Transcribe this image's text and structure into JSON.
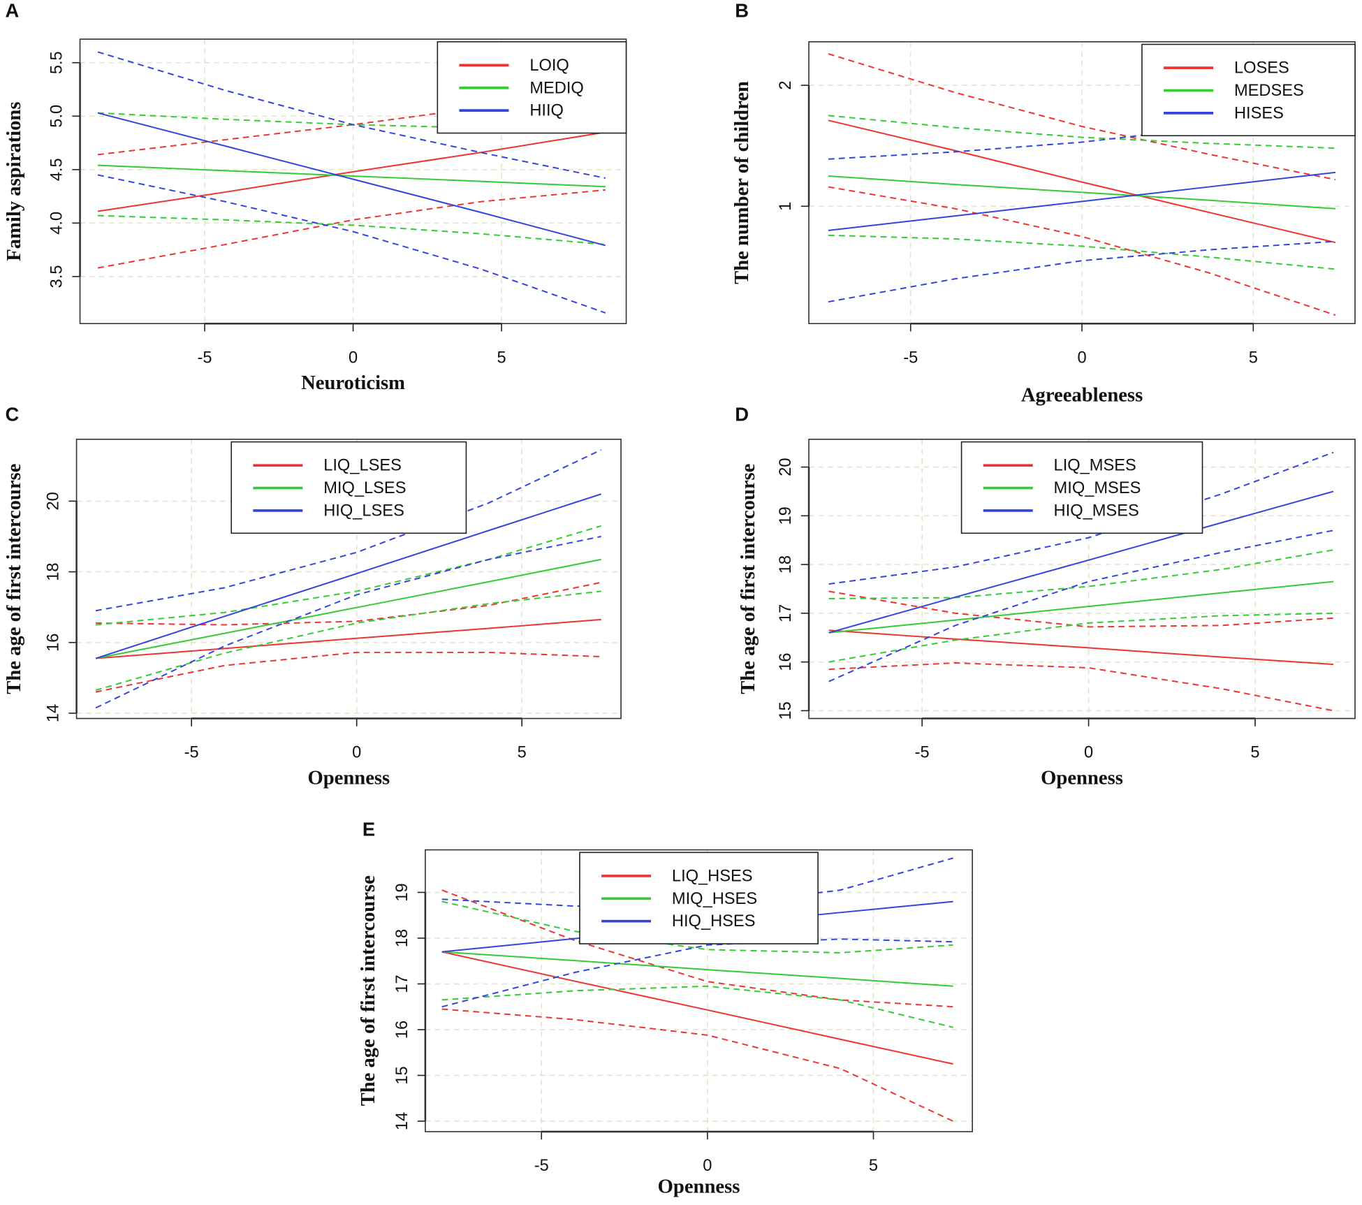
{
  "chart_data": [
    {
      "type": "line",
      "panel": "A",
      "x_label": "Neuroticism",
      "y_label": "Family aspirations",
      "x": [
        -8.6,
        -4.3,
        0,
        4.3,
        8.5
      ],
      "series": [
        {
          "name": "LOIQ",
          "color": "#ee3333",
          "values": [
            4.11,
            4.29,
            4.48,
            4.66,
            4.85
          ],
          "lower": [
            3.58,
            3.8,
            4.03,
            4.2,
            4.31
          ],
          "upper": [
            4.64,
            4.78,
            4.92,
            5.08,
            5.25
          ]
        },
        {
          "name": "MEDIQ",
          "color": "#33cc33",
          "values": [
            4.54,
            4.49,
            4.44,
            4.39,
            4.34
          ],
          "lower": [
            4.07,
            4.03,
            3.98,
            3.9,
            3.8
          ],
          "upper": [
            5.03,
            4.97,
            4.92,
            4.89,
            4.88
          ]
        },
        {
          "name": "HIIQ",
          "color": "#3344dd",
          "values": [
            5.03,
            4.72,
            4.41,
            4.1,
            3.79
          ],
          "lower": [
            4.45,
            4.2,
            3.92,
            3.57,
            3.16
          ],
          "upper": [
            5.6,
            5.24,
            4.92,
            4.66,
            4.42
          ]
        }
      ],
      "xlim": [
        -9.2,
        9.2
      ],
      "ylim": [
        3.06,
        5.72
      ],
      "xticks": [
        -5,
        0,
        5
      ],
      "yticks": [
        3.5,
        {
          "value": 4,
          "label": "4.0"
        },
        4.5,
        {
          "value": 5,
          "label": "5.0"
        },
        5.5
      ],
      "grid": true,
      "legend": "topright"
    },
    {
      "type": "line",
      "panel": "B",
      "x_label": "Agreeableness",
      "y_label": "The number of children",
      "x": [
        -7.4,
        -3.7,
        0,
        3.7,
        7.4
      ],
      "series": [
        {
          "name": "LOSES",
          "color": "#ee3333",
          "values": [
            1.71,
            1.46,
            1.2,
            0.95,
            0.7
          ],
          "lower": [
            1.16,
            0.98,
            0.75,
            0.45,
            0.1
          ],
          "upper": [
            2.26,
            1.94,
            1.66,
            1.43,
            1.22
          ]
        },
        {
          "name": "MEDSES",
          "color": "#33cc33",
          "values": [
            1.25,
            1.18,
            1.115,
            1.05,
            0.98
          ],
          "lower": [
            0.76,
            0.73,
            0.67,
            0.58,
            0.48
          ],
          "upper": [
            1.75,
            1.65,
            1.57,
            1.52,
            1.48
          ]
        },
        {
          "name": "HISES",
          "color": "#3344dd",
          "values": [
            0.8,
            0.92,
            1.04,
            1.16,
            1.28
          ],
          "lower": [
            0.21,
            0.4,
            0.55,
            0.64,
            0.71
          ],
          "upper": [
            1.39,
            1.45,
            1.53,
            1.65,
            1.85
          ]
        }
      ],
      "xlim": [
        -7.97,
        7.97
      ],
      "ylim": [
        0.03,
        2.36
      ],
      "xticks": [
        -5,
        0,
        5
      ],
      "yticks": [
        1,
        2
      ],
      "grid": true,
      "legend": "topright"
    },
    {
      "type": "line",
      "panel": "C",
      "x_label": "Openness",
      "y_label": "The age of first intercourse",
      "x": [
        -7.9,
        -4,
        0,
        4,
        7.4
      ],
      "series": [
        {
          "name": "LIQ_LSES",
          "color": "#ee3333",
          "values": [
            15.55,
            15.83,
            16.12,
            16.4,
            16.65
          ],
          "lower": [
            14.6,
            15.35,
            15.72,
            15.72,
            15.6
          ],
          "upper": [
            16.55,
            16.5,
            16.6,
            17.05,
            17.7
          ]
        },
        {
          "name": "MIQ_LSES",
          "color": "#33cc33",
          "values": [
            15.55,
            16.26,
            16.99,
            17.72,
            18.35
          ],
          "lower": [
            14.65,
            15.7,
            16.55,
            17.1,
            17.45
          ],
          "upper": [
            16.5,
            16.85,
            17.45,
            18.35,
            19.3
          ]
        },
        {
          "name": "HIQ_LSES",
          "color": "#3344dd",
          "values": [
            15.55,
            16.74,
            17.95,
            19.17,
            20.2
          ],
          "lower": [
            14.15,
            15.9,
            17.35,
            18.35,
            19.0
          ],
          "upper": [
            16.9,
            17.55,
            18.55,
            19.95,
            21.45
          ]
        }
      ],
      "xlim": [
        -8.48,
        8.0
      ],
      "ylim": [
        13.85,
        21.75
      ],
      "xticks": [
        -5,
        0,
        5
      ],
      "yticks": [
        14,
        16,
        18,
        20
      ],
      "grid": true,
      "legend": "top"
    },
    {
      "type": "line",
      "panel": "D",
      "x_label": "Openness",
      "y_label": "The age of first intercourse",
      "x": [
        -7.8,
        -4,
        0,
        4,
        7.35
      ],
      "series": [
        {
          "name": "LIQ_MSES",
          "color": "#ee3333",
          "values": [
            16.65,
            16.47,
            16.29,
            16.1,
            15.95
          ],
          "lower": [
            15.85,
            15.98,
            15.88,
            15.45,
            15.0
          ],
          "upper": [
            17.45,
            17.0,
            16.72,
            16.75,
            16.9
          ]
        },
        {
          "name": "MIQ_MSES",
          "color": "#33cc33",
          "values": [
            16.6,
            16.86,
            17.14,
            17.42,
            17.65
          ],
          "lower": [
            16.0,
            16.45,
            16.8,
            16.95,
            17.0
          ],
          "upper": [
            17.3,
            17.32,
            17.55,
            17.9,
            18.3
          ]
        },
        {
          "name": "HIQ_MSES",
          "color": "#3344dd",
          "values": [
            16.6,
            17.33,
            18.09,
            18.86,
            19.5
          ],
          "lower": [
            15.6,
            16.75,
            17.65,
            18.25,
            18.7
          ],
          "upper": [
            17.6,
            17.95,
            18.55,
            19.45,
            20.3
          ]
        }
      ],
      "xlim": [
        -8.4,
        8.0
      ],
      "ylim": [
        14.84,
        20.57
      ],
      "xticks": [
        -5,
        0,
        5
      ],
      "yticks": [
        15,
        16,
        17,
        18,
        19,
        20
      ],
      "grid": true,
      "legend": "top"
    },
    {
      "type": "line",
      "panel": "E",
      "x_label": "Openness",
      "y_label": "The age of first intercourse",
      "x": [
        -8,
        -4,
        0,
        4,
        7.4
      ],
      "series": [
        {
          "name": "LIQ_HSES",
          "color": "#ee3333",
          "values": [
            17.7,
            17.06,
            16.43,
            15.79,
            15.25
          ],
          "lower": [
            16.45,
            16.22,
            15.88,
            15.15,
            14.0
          ],
          "upper": [
            19.05,
            17.95,
            17.05,
            16.65,
            16.5
          ]
        },
        {
          "name": "MIQ_HSES",
          "color": "#33cc33",
          "values": [
            17.7,
            17.51,
            17.31,
            17.12,
            16.95
          ],
          "lower": [
            16.65,
            16.85,
            16.95,
            16.65,
            16.05
          ],
          "upper": [
            18.8,
            18.15,
            17.75,
            17.68,
            17.85
          ]
        },
        {
          "name": "HIQ_HSES",
          "color": "#3344dd",
          "values": [
            17.7,
            17.99,
            18.27,
            18.56,
            18.8
          ],
          "lower": [
            16.5,
            17.25,
            17.85,
            17.98,
            17.92
          ],
          "upper": [
            18.85,
            18.7,
            18.7,
            19.05,
            19.75
          ]
        }
      ],
      "xlim": [
        -8.5,
        7.98
      ],
      "ylim": [
        13.77,
        19.93
      ],
      "xticks": [
        -5,
        0,
        5
      ],
      "yticks": [
        14,
        15,
        16,
        17,
        18,
        19
      ],
      "grid": true,
      "legend": "top"
    }
  ]
}
